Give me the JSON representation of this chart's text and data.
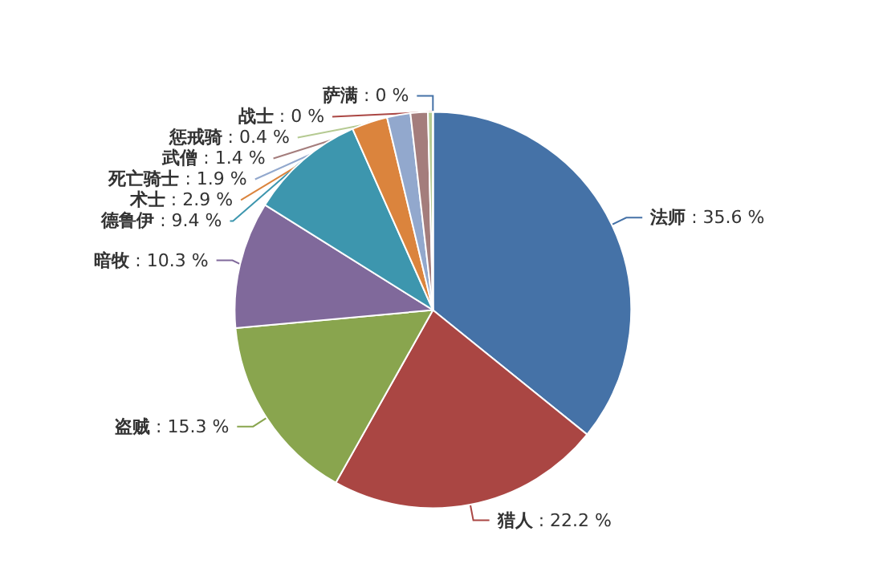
{
  "chart_data": {
    "type": "pie",
    "categories": [
      "法师",
      "猎人",
      "盗贼",
      "暗牧",
      "德鲁伊",
      "术士",
      "死亡骑士",
      "武僧",
      "惩戒骑",
      "萨满",
      "战士"
    ],
    "values": [
      35.6,
      22.2,
      15.3,
      10.3,
      9.4,
      2.9,
      1.9,
      1.4,
      0.4,
      0,
      0
    ],
    "colors": [
      "#4572a7",
      "#aa4643",
      "#89a54e",
      "#80699b",
      "#3d96ae",
      "#db843d",
      "#92a8cd",
      "#a47d7c",
      "#b5ca92",
      "#4572a7",
      "#aa4643"
    ],
    "value_labels": [
      ": 35.6 %",
      ": 22.2 %",
      ": 15.3 %",
      ": 10.3 %",
      ": 9.4 %",
      ": 2.9 %",
      ": 1.9 %",
      ": 1.4 %",
      ": 0.4 %",
      ": 0 %",
      ": 0 %"
    ],
    "legend": false
  }
}
